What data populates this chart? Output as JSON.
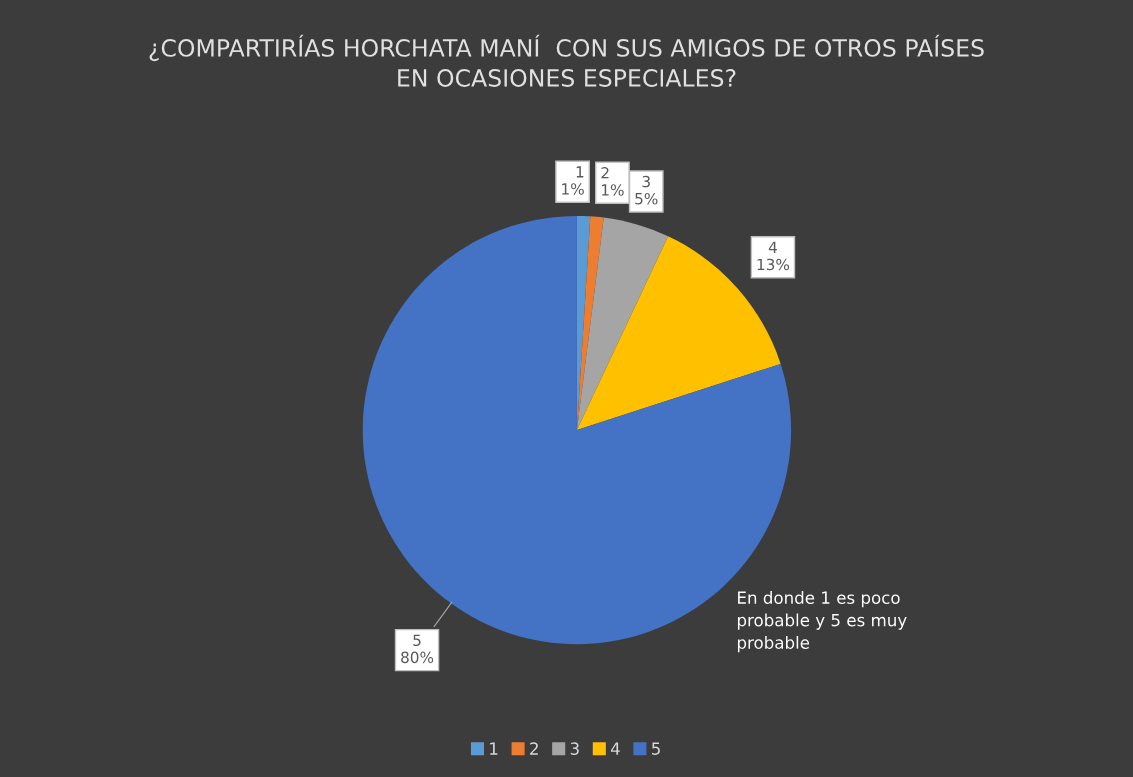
{
  "chart_data": {
    "type": "pie",
    "title": "¿COMPARTIRÍAS HORCHATA MANÍ  CON SUS AMIGOS DE OTROS PAÍSES EN OCASIONES ESPECIALES?",
    "categories": [
      "1",
      "2",
      "3",
      "4",
      "5"
    ],
    "values": [
      1,
      1,
      5,
      13,
      80
    ],
    "colors": [
      "#5b9bd5",
      "#ed7d31",
      "#a5a5a5",
      "#ffc000",
      "#4472c4"
    ],
    "value_labels": [
      "1%",
      "1%",
      "5%",
      "13%",
      "80%"
    ],
    "legend": "bottom",
    "annotations": [
      "En donde 1 es poco probable y 5 es muy probable"
    ]
  }
}
